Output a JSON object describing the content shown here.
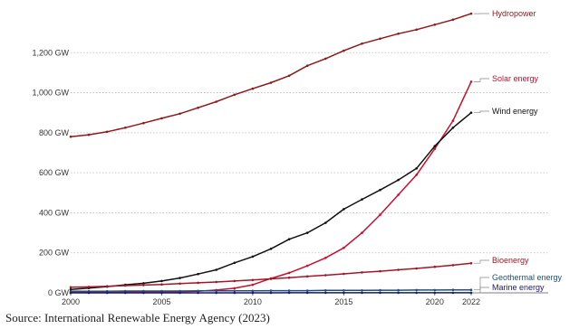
{
  "chart_data": {
    "type": "line",
    "title": "",
    "xlabel": "",
    "ylabel": "",
    "x": [
      2000,
      2001,
      2002,
      2003,
      2004,
      2005,
      2006,
      2007,
      2008,
      2009,
      2010,
      2011,
      2012,
      2013,
      2014,
      2015,
      2016,
      2017,
      2018,
      2019,
      2020,
      2021,
      2022
    ],
    "xticks": [
      2000,
      2005,
      2010,
      2015,
      2020,
      2022
    ],
    "xlim": [
      2000,
      2022
    ],
    "ylim": [
      0,
      1400
    ],
    "yticks": [
      {
        "value": 0,
        "label": "0 GW"
      },
      {
        "value": 200,
        "label": "200 GW"
      },
      {
        "value": 400,
        "label": "400 GW"
      },
      {
        "value": 600,
        "label": "600 GW"
      },
      {
        "value": 800,
        "label": "800 GW"
      },
      {
        "value": 1000,
        "label": "1,000 GW"
      },
      {
        "value": 1200,
        "label": "1,200 GW"
      }
    ],
    "grid": "horizontal-dotted",
    "legend": "labels at line ends (right)",
    "series": [
      {
        "name": "Hydropower",
        "color": "#8b1a1a",
        "values": [
          780,
          790,
          805,
          825,
          848,
          872,
          895,
          925,
          955,
          990,
          1020,
          1050,
          1085,
          1135,
          1170,
          1210,
          1245,
          1270,
          1295,
          1315,
          1340,
          1365,
          1395
        ]
      },
      {
        "name": "Solar energy",
        "color": "#c8102e",
        "values": [
          1,
          1,
          2,
          3,
          4,
          5,
          6,
          8,
          14,
          23,
          40,
          72,
          100,
          135,
          175,
          225,
          300,
          390,
          490,
          590,
          720,
          860,
          1055
        ]
      },
      {
        "name": "Wind energy",
        "color": "#111111",
        "values": [
          17,
          24,
          31,
          40,
          48,
          59,
          74,
          94,
          115,
          150,
          181,
          220,
          268,
          300,
          350,
          418,
          467,
          514,
          564,
          622,
          733,
          825,
          900
        ]
      },
      {
        "name": "Bioenergy",
        "color": "#a01828",
        "values": [
          28,
          30,
          33,
          36,
          39,
          42,
          46,
          50,
          54,
          59,
          64,
          70,
          76,
          82,
          88,
          95,
          102,
          108,
          115,
          122,
          130,
          138,
          148
        ]
      },
      {
        "name": "Geothermal energy",
        "color": "#1f4f7a",
        "values": [
          8,
          8,
          8,
          9,
          9,
          9,
          9,
          10,
          10,
          10,
          10,
          11,
          11,
          11,
          12,
          12,
          12,
          13,
          13,
          14,
          14,
          15,
          15
        ]
      },
      {
        "name": "Marine energy",
        "color": "#1a1a6e",
        "values": [
          0.2,
          0.2,
          0.2,
          0.2,
          0.2,
          0.2,
          0.2,
          0.2,
          0.2,
          0.2,
          0.2,
          0.2,
          0.3,
          0.5,
          0.5,
          0.5,
          0.5,
          0.5,
          0.5,
          0.5,
          0.5,
          0.5,
          0.5
        ]
      }
    ]
  },
  "source": "Source: International Renewable Energy Agency (2023)"
}
